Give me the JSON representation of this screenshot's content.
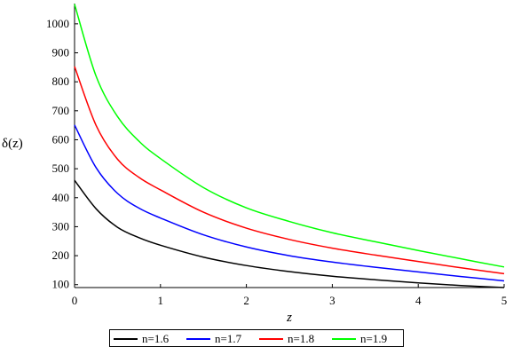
{
  "chart_data": {
    "type": "line",
    "title": "",
    "xlabel": "z",
    "ylabel": "δ(z)",
    "xlim": [
      0,
      5
    ],
    "ylim": [
      90,
      1070
    ],
    "xticks": [
      0,
      1,
      2,
      3,
      4,
      5
    ],
    "yticks": [
      100,
      200,
      300,
      400,
      500,
      600,
      700,
      800,
      900,
      1000
    ],
    "grid": false,
    "legend_position": "bottom",
    "x": [
      0,
      0.25,
      0.5,
      0.75,
      1,
      1.5,
      2,
      2.5,
      3,
      3.5,
      4,
      4.5,
      5
    ],
    "series": [
      {
        "name": "n=1.6",
        "color": "#000000",
        "values": [
          460,
          362,
          298,
          262,
          236,
          195,
          166,
          145,
          129,
          117,
          106,
          97,
          90
        ]
      },
      {
        "name": "n=1.7",
        "color": "#0000ff",
        "values": [
          651,
          504,
          415,
          364,
          330,
          272,
          230,
          200,
          178,
          160,
          144,
          128,
          113
        ]
      },
      {
        "name": "n=1.8",
        "color": "#ff0000",
        "values": [
          853,
          650,
          533,
          470,
          427,
          350,
          295,
          256,
          226,
          202,
          180,
          158,
          138
        ]
      },
      {
        "name": "n=1.9",
        "color": "#00ff00",
        "values": [
          1068,
          820,
          680,
          595,
          535,
          435,
          365,
          318,
          279,
          248,
          218,
          189,
          161
        ]
      }
    ]
  }
}
